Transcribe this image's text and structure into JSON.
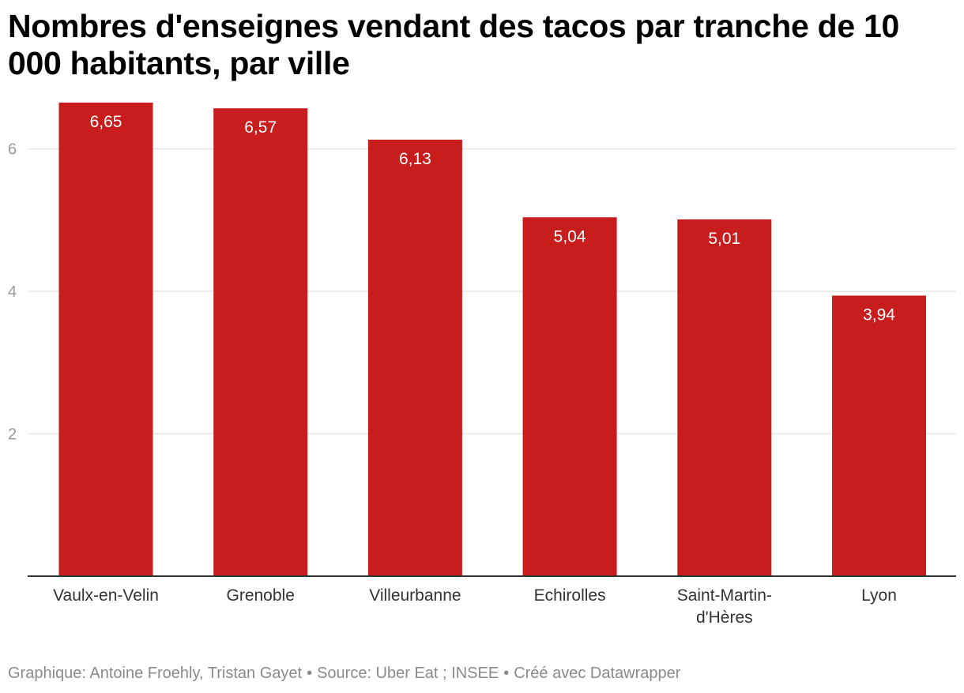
{
  "title": "Nombres d'enseignes vendant des tacos par tranche de 10 000 habitants, par ville",
  "footer": {
    "credit": "Graphique: Antoine Froehly, Tristan Gayet",
    "source": "Source: Uber Eat ; INSEE",
    "tool": "Créé avec Datawrapper",
    "separator": "•"
  },
  "colors": {
    "bar": "#c71e1d",
    "grid": "#e6e6e6",
    "axis": "#333333",
    "tick_label": "#999999",
    "category_label": "#333333",
    "value_label": "#ffffff"
  },
  "chart_data": {
    "type": "bar",
    "categories": [
      "Vaulx-en-Velin",
      "Grenoble",
      "Villeurbanne",
      "Echirolles",
      "Saint-Martin-d'Hères",
      "Lyon"
    ],
    "category_label_lines": [
      [
        "Vaulx-en-Velin"
      ],
      [
        "Grenoble"
      ],
      [
        "Villeurbanne"
      ],
      [
        "Echirolles"
      ],
      [
        "Saint-Martin-",
        "d'Hères"
      ],
      [
        "Lyon"
      ]
    ],
    "values": [
      6.65,
      6.57,
      6.13,
      5.04,
      5.01,
      3.94
    ],
    "value_labels": [
      "6,65",
      "6,57",
      "6,13",
      "5,04",
      "5,01",
      "3,94"
    ],
    "ylim": [
      0,
      6.65
    ],
    "yticks": [
      2,
      4,
      6
    ],
    "ytick_labels": [
      "2",
      "4",
      "6"
    ],
    "grid": true,
    "legend": "none",
    "xlabel": "",
    "ylabel": ""
  }
}
